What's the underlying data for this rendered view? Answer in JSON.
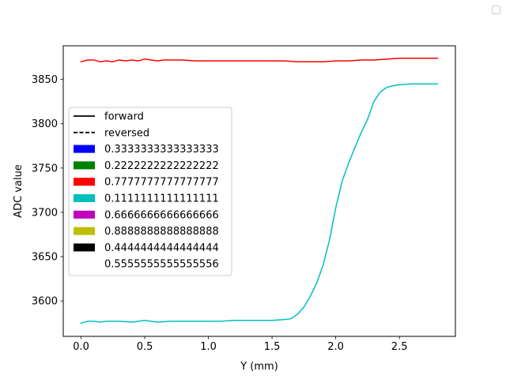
{
  "chart_data": {
    "type": "line",
    "xlabel": "Y (mm)",
    "ylabel": "ADC value",
    "xlim": [
      -0.14,
      2.94
    ],
    "ylim": [
      3560,
      3888
    ],
    "xticks": [
      0.0,
      0.5,
      1.0,
      1.5,
      2.0,
      2.5
    ],
    "xtick_labels": [
      "0.0",
      "0.5",
      "1.0",
      "1.5",
      "2.0",
      "2.5"
    ],
    "yticks": [
      3600,
      3650,
      3700,
      3750,
      3800,
      3850
    ],
    "ytick_labels": [
      "3600",
      "3650",
      "3700",
      "3750",
      "3800",
      "3850"
    ],
    "grid": false,
    "legend_placement": "center-left",
    "series": [
      {
        "color": "#ff0000",
        "x": [
          0.0,
          0.05,
          0.1,
          0.15,
          0.2,
          0.25,
          0.3,
          0.35,
          0.4,
          0.45,
          0.5,
          0.55,
          0.6,
          0.65,
          0.7,
          0.8,
          0.9,
          1.0,
          1.1,
          1.2,
          1.3,
          1.4,
          1.5,
          1.6,
          1.7,
          1.8,
          1.9,
          2.0,
          2.1,
          2.2,
          2.3,
          2.4,
          2.5,
          2.6,
          2.7,
          2.8
        ],
        "y": [
          3870,
          3872,
          3872,
          3870,
          3871,
          3870,
          3872,
          3871,
          3872,
          3871,
          3873,
          3872,
          3871,
          3872,
          3872,
          3872,
          3871,
          3871,
          3871,
          3871,
          3871,
          3871,
          3871,
          3871,
          3870,
          3870,
          3870,
          3871,
          3871,
          3872,
          3872,
          3873,
          3874,
          3874,
          3874,
          3874
        ]
      },
      {
        "color": "#00bfbf",
        "x": [
          0.0,
          0.05,
          0.1,
          0.15,
          0.2,
          0.3,
          0.4,
          0.5,
          0.6,
          0.7,
          0.8,
          0.9,
          1.0,
          1.1,
          1.2,
          1.3,
          1.4,
          1.5,
          1.6,
          1.65,
          1.7,
          1.75,
          1.8,
          1.85,
          1.9,
          1.95,
          2.0,
          2.05,
          2.1,
          2.15,
          2.2,
          2.25,
          2.3,
          2.35,
          2.4,
          2.45,
          2.5,
          2.6,
          2.7,
          2.8
        ],
        "y": [
          3575,
          3577,
          3577,
          3576,
          3577,
          3577,
          3576,
          3578,
          3576,
          3577,
          3577,
          3577,
          3577,
          3577,
          3578,
          3578,
          3578,
          3578,
          3579,
          3580,
          3585,
          3593,
          3605,
          3620,
          3640,
          3668,
          3705,
          3735,
          3755,
          3773,
          3790,
          3805,
          3825,
          3836,
          3841,
          3843,
          3844,
          3845,
          3845,
          3845
        ]
      }
    ],
    "legend": [
      {
        "label": "forward",
        "style": "solid-line",
        "color": "#000000"
      },
      {
        "label": "reversed",
        "style": "dashed-line",
        "color": "#000000"
      },
      {
        "label": "0.3333333333333333",
        "style": "patch",
        "color": "#0000ff"
      },
      {
        "label": "0.2222222222222222",
        "style": "patch",
        "color": "#008000"
      },
      {
        "label": "0.7777777777777777",
        "style": "patch",
        "color": "#ff0000"
      },
      {
        "label": "0.1111111111111111",
        "style": "patch",
        "color": "#00bfbf"
      },
      {
        "label": "0.6666666666666666",
        "style": "patch",
        "color": "#bf00bf"
      },
      {
        "label": "0.8888888888888888",
        "style": "patch",
        "color": "#bfbf00"
      },
      {
        "label": "0.4444444444444444",
        "style": "patch",
        "color": "#000000"
      },
      {
        "label": "0.5555555555555556",
        "style": "patch",
        "color": "#ffffff"
      }
    ]
  }
}
